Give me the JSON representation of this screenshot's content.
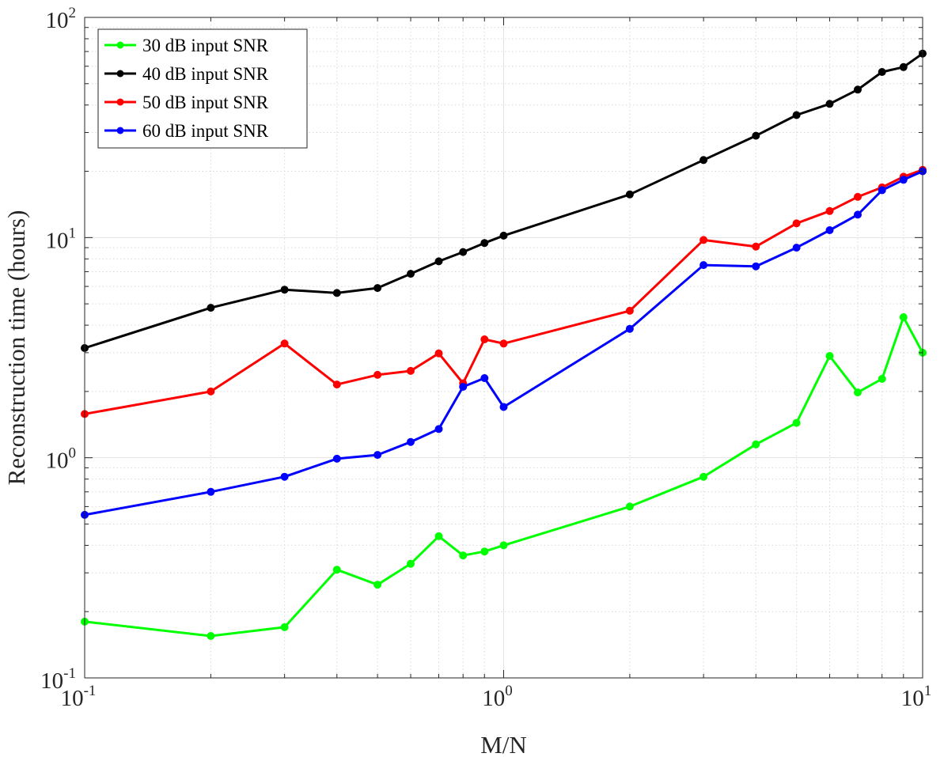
{
  "chart_data": {
    "type": "line",
    "title": "",
    "xlabel": "M/N",
    "ylabel": "Reconstruction time (hours)",
    "xscale": "log",
    "yscale": "log",
    "xlim": [
      0.1,
      10
    ],
    "ylim": [
      0.1,
      100
    ],
    "grid": true,
    "minor_grid": true,
    "legend_position": "top-left",
    "x_ticks": [
      {
        "base": "10",
        "exp": "-1"
      },
      {
        "base": "10",
        "exp": "0"
      },
      {
        "base": "10",
        "exp": "1"
      }
    ],
    "y_ticks": [
      {
        "base": "10",
        "exp": "-1"
      },
      {
        "base": "10",
        "exp": "0"
      },
      {
        "base": "10",
        "exp": "1"
      },
      {
        "base": "10",
        "exp": "2"
      }
    ],
    "x": [
      0.1,
      0.2,
      0.3,
      0.4,
      0.5,
      0.6,
      0.7,
      0.8,
      0.9,
      1,
      2,
      3,
      4,
      5,
      6,
      7,
      8,
      9,
      10
    ],
    "series": [
      {
        "name": "30 dB input SNR",
        "color": "#00ff00",
        "values": [
          0.18,
          0.155,
          0.17,
          0.31,
          0.265,
          0.33,
          0.44,
          0.36,
          0.375,
          0.4,
          0.6,
          0.82,
          1.15,
          1.44,
          2.9,
          1.98,
          2.28,
          4.35,
          3.0
        ]
      },
      {
        "name": "40 dB input SNR",
        "color": "#000000",
        "values": [
          3.15,
          4.8,
          5.8,
          5.6,
          5.9,
          6.85,
          7.8,
          8.6,
          9.45,
          10.2,
          15.7,
          22.5,
          29.0,
          36.0,
          40.5,
          47.0,
          56.5,
          59.5,
          68.5
        ]
      },
      {
        "name": "50 dB input SNR",
        "color": "#ff0000",
        "values": [
          1.58,
          2.0,
          3.3,
          2.15,
          2.38,
          2.48,
          2.98,
          2.18,
          3.45,
          3.3,
          4.65,
          9.75,
          9.1,
          11.6,
          13.2,
          15.3,
          16.9,
          18.9,
          20.3
        ]
      },
      {
        "name": "60 dB input SNR",
        "color": "#0000ff",
        "values": [
          0.55,
          0.7,
          0.82,
          0.99,
          1.03,
          1.18,
          1.35,
          2.1,
          2.3,
          1.7,
          3.85,
          7.5,
          7.4,
          9.0,
          10.8,
          12.7,
          16.4,
          18.3,
          20.0
        ]
      }
    ]
  }
}
